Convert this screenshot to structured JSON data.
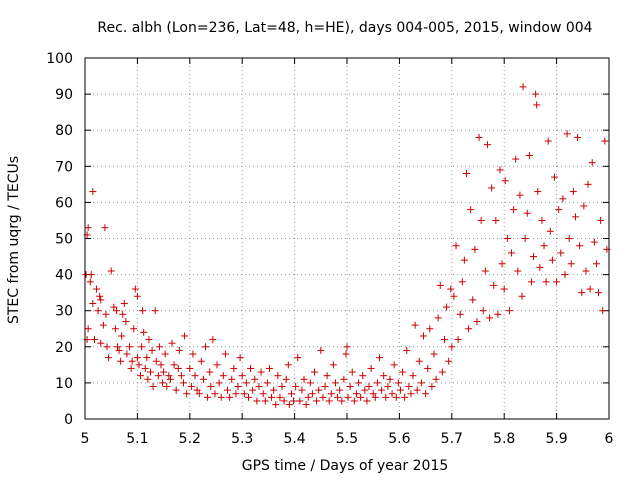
{
  "chart_data": {
    "type": "scatter",
    "title": "Rec. albh (Lon=236, Lat=48, h=HE), days 004-005, 2015, window 004",
    "xlabel": "GPS time / Days of year 2015",
    "ylabel": "STEC from uqrg / TECUs",
    "xlim": [
      5,
      6
    ],
    "ylim": [
      0,
      100
    ],
    "xticks": [
      "5",
      "5.1",
      "5.2",
      "5.3",
      "5.4",
      "5.5",
      "5.6",
      "5.7",
      "5.8",
      "5.9",
      "6"
    ],
    "yticks": [
      "0",
      "10",
      "20",
      "30",
      "40",
      "50",
      "60",
      "70",
      "80",
      "90",
      "100"
    ],
    "grid": true,
    "marker": "+",
    "color": "#cc0000",
    "series": [
      {
        "points": [
          [
            5.002,
            40
          ],
          [
            5.004,
            51
          ],
          [
            5.006,
            53
          ],
          [
            5.004,
            22
          ],
          [
            5.006,
            25
          ],
          [
            5.01,
            38
          ],
          [
            5.012,
            40
          ],
          [
            5.015,
            63
          ],
          [
            5.015,
            32
          ],
          [
            5.018,
            22
          ],
          [
            5.022,
            36
          ],
          [
            5.025,
            30
          ],
          [
            5.028,
            34
          ],
          [
            5.03,
            33
          ],
          [
            5.03,
            21
          ],
          [
            5.035,
            26
          ],
          [
            5.038,
            53
          ],
          [
            5.04,
            29
          ],
          [
            5.042,
            20
          ],
          [
            5.045,
            17
          ],
          [
            5.05,
            41
          ],
          [
            5.055,
            31
          ],
          [
            5.058,
            25
          ],
          [
            5.06,
            30
          ],
          [
            5.062,
            20
          ],
          [
            5.065,
            19
          ],
          [
            5.068,
            16
          ],
          [
            5.07,
            23
          ],
          [
            5.072,
            29
          ],
          [
            5.075,
            32
          ],
          [
            5.078,
            27
          ],
          [
            5.08,
            18
          ],
          [
            5.085,
            20
          ],
          [
            5.088,
            14
          ],
          [
            5.09,
            16
          ],
          [
            5.093,
            25
          ],
          [
            5.096,
            36
          ],
          [
            5.1,
            34
          ],
          [
            5.1,
            17
          ],
          [
            5.103,
            15
          ],
          [
            5.106,
            12
          ],
          [
            5.108,
            20
          ],
          [
            5.11,
            30
          ],
          [
            5.112,
            24
          ],
          [
            5.115,
            14
          ],
          [
            5.118,
            17
          ],
          [
            5.12,
            11
          ],
          [
            5.122,
            22
          ],
          [
            5.125,
            13
          ],
          [
            5.128,
            19
          ],
          [
            5.13,
            9
          ],
          [
            5.134,
            30
          ],
          [
            5.136,
            16
          ],
          [
            5.14,
            12
          ],
          [
            5.142,
            20
          ],
          [
            5.145,
            15
          ],
          [
            5.148,
            10
          ],
          [
            5.15,
            13
          ],
          [
            5.153,
            18
          ],
          [
            5.156,
            9
          ],
          [
            5.16,
            12
          ],
          [
            5.163,
            11
          ],
          [
            5.166,
            21
          ],
          [
            5.17,
            15
          ],
          [
            5.174,
            8
          ],
          [
            5.178,
            14
          ],
          [
            5.18,
            19
          ],
          [
            5.184,
            12
          ],
          [
            5.188,
            10
          ],
          [
            5.19,
            23
          ],
          [
            5.194,
            7
          ],
          [
            5.2,
            14
          ],
          [
            5.203,
            9
          ],
          [
            5.206,
            18
          ],
          [
            5.21,
            12
          ],
          [
            5.214,
            8
          ],
          [
            5.218,
            7
          ],
          [
            5.222,
            16
          ],
          [
            5.226,
            11
          ],
          [
            5.23,
            20
          ],
          [
            5.234,
            6
          ],
          [
            5.238,
            13
          ],
          [
            5.24,
            9
          ],
          [
            5.244,
            22
          ],
          [
            5.248,
            7
          ],
          [
            5.252,
            15
          ],
          [
            5.256,
            10
          ],
          [
            5.26,
            6
          ],
          [
            5.264,
            12
          ],
          [
            5.268,
            18
          ],
          [
            5.272,
            8
          ],
          [
            5.276,
            6
          ],
          [
            5.28,
            11
          ],
          [
            5.284,
            14
          ],
          [
            5.288,
            7
          ],
          [
            5.292,
            9
          ],
          [
            5.296,
            17
          ],
          [
            5.3,
            12
          ],
          [
            5.304,
            7
          ],
          [
            5.308,
            10
          ],
          [
            5.312,
            6
          ],
          [
            5.316,
            14
          ],
          [
            5.32,
            8
          ],
          [
            5.324,
            11
          ],
          [
            5.328,
            5
          ],
          [
            5.332,
            9
          ],
          [
            5.336,
            13
          ],
          [
            5.34,
            7
          ],
          [
            5.344,
            5
          ],
          [
            5.348,
            10
          ],
          [
            5.352,
            14
          ],
          [
            5.356,
            6
          ],
          [
            5.36,
            8
          ],
          [
            5.364,
            4
          ],
          [
            5.368,
            12
          ],
          [
            5.372,
            6
          ],
          [
            5.376,
            9
          ],
          [
            5.38,
            5
          ],
          [
            5.384,
            11
          ],
          [
            5.388,
            15
          ],
          [
            5.39,
            4
          ],
          [
            5.394,
            7
          ],
          [
            5.398,
            5
          ],
          [
            5.402,
            9
          ],
          [
            5.406,
            17
          ],
          [
            5.41,
            5
          ],
          [
            5.414,
            8
          ],
          [
            5.418,
            11
          ],
          [
            5.422,
            4
          ],
          [
            5.426,
            6
          ],
          [
            5.43,
            10
          ],
          [
            5.434,
            7
          ],
          [
            5.438,
            13
          ],
          [
            5.442,
            5
          ],
          [
            5.446,
            8
          ],
          [
            5.45,
            19
          ],
          [
            5.454,
            6
          ],
          [
            5.458,
            9
          ],
          [
            5.462,
            12
          ],
          [
            5.466,
            5
          ],
          [
            5.47,
            7
          ],
          [
            5.474,
            15
          ],
          [
            5.478,
            10
          ],
          [
            5.482,
            6
          ],
          [
            5.486,
            8
          ],
          [
            5.49,
            5
          ],
          [
            5.494,
            11
          ],
          [
            5.498,
            18
          ],
          [
            5.5,
            20
          ],
          [
            5.502,
            6
          ],
          [
            5.506,
            9
          ],
          [
            5.51,
            13
          ],
          [
            5.514,
            5
          ],
          [
            5.518,
            7
          ],
          [
            5.522,
            10
          ],
          [
            5.526,
            6
          ],
          [
            5.53,
            12
          ],
          [
            5.534,
            8
          ],
          [
            5.538,
            5
          ],
          [
            5.542,
            9
          ],
          [
            5.546,
            14
          ],
          [
            5.55,
            7
          ],
          [
            5.554,
            6
          ],
          [
            5.558,
            10
          ],
          [
            5.562,
            17
          ],
          [
            5.566,
            8
          ],
          [
            5.57,
            12
          ],
          [
            5.574,
            6
          ],
          [
            5.578,
            9
          ],
          [
            5.582,
            11
          ],
          [
            5.586,
            7
          ],
          [
            5.59,
            15
          ],
          [
            5.594,
            6
          ],
          [
            5.598,
            10
          ],
          [
            5.602,
            8
          ],
          [
            5.606,
            13
          ],
          [
            5.61,
            6
          ],
          [
            5.614,
            19
          ],
          [
            5.618,
            9
          ],
          [
            5.622,
            7
          ],
          [
            5.626,
            12
          ],
          [
            5.63,
            26
          ],
          [
            5.634,
            8
          ],
          [
            5.638,
            16
          ],
          [
            5.642,
            10
          ],
          [
            5.646,
            23
          ],
          [
            5.65,
            7
          ],
          [
            5.654,
            14
          ],
          [
            5.658,
            25
          ],
          [
            5.662,
            9
          ],
          [
            5.666,
            18
          ],
          [
            5.67,
            11
          ],
          [
            5.674,
            28
          ],
          [
            5.678,
            37
          ],
          [
            5.682,
            13
          ],
          [
            5.686,
            22
          ],
          [
            5.69,
            31
          ],
          [
            5.694,
            16
          ],
          [
            5.698,
            36
          ],
          [
            5.7,
            20
          ],
          [
            5.704,
            34
          ],
          [
            5.708,
            48
          ],
          [
            5.712,
            22
          ],
          [
            5.716,
            29
          ],
          [
            5.72,
            38
          ],
          [
            5.724,
            44
          ],
          [
            5.728,
            68
          ],
          [
            5.732,
            25
          ],
          [
            5.736,
            58
          ],
          [
            5.74,
            33
          ],
          [
            5.744,
            47
          ],
          [
            5.748,
            27
          ],
          [
            5.752,
            78
          ],
          [
            5.756,
            55
          ],
          [
            5.76,
            30
          ],
          [
            5.764,
            41
          ],
          [
            5.768,
            76
          ],
          [
            5.772,
            28
          ],
          [
            5.776,
            64
          ],
          [
            5.78,
            37
          ],
          [
            5.784,
            55
          ],
          [
            5.788,
            29
          ],
          [
            5.792,
            69
          ],
          [
            5.796,
            43
          ],
          [
            5.8,
            36
          ],
          [
            5.802,
            66
          ],
          [
            5.806,
            50
          ],
          [
            5.81,
            30
          ],
          [
            5.814,
            46
          ],
          [
            5.818,
            58
          ],
          [
            5.822,
            72
          ],
          [
            5.826,
            41
          ],
          [
            5.83,
            62
          ],
          [
            5.834,
            34
          ],
          [
            5.836,
            92
          ],
          [
            5.84,
            50
          ],
          [
            5.844,
            57
          ],
          [
            5.848,
            73
          ],
          [
            5.852,
            38
          ],
          [
            5.856,
            45
          ],
          [
            5.86,
            90
          ],
          [
            5.862,
            87
          ],
          [
            5.864,
            63
          ],
          [
            5.868,
            42
          ],
          [
            5.872,
            55
          ],
          [
            5.876,
            48
          ],
          [
            5.88,
            38
          ],
          [
            5.884,
            77
          ],
          [
            5.888,
            52
          ],
          [
            5.892,
            44
          ],
          [
            5.896,
            67
          ],
          [
            5.9,
            38
          ],
          [
            5.904,
            58
          ],
          [
            5.908,
            46
          ],
          [
            5.912,
            61
          ],
          [
            5.916,
            40
          ],
          [
            5.92,
            79
          ],
          [
            5.924,
            50
          ],
          [
            5.928,
            43
          ],
          [
            5.932,
            63
          ],
          [
            5.936,
            56
          ],
          [
            5.94,
            78
          ],
          [
            5.944,
            48
          ],
          [
            5.948,
            35
          ],
          [
            5.952,
            59
          ],
          [
            5.956,
            41
          ],
          [
            5.96,
            65
          ],
          [
            5.964,
            36
          ],
          [
            5.968,
            71
          ],
          [
            5.972,
            49
          ],
          [
            5.976,
            43
          ],
          [
            5.98,
            35
          ],
          [
            5.984,
            55
          ],
          [
            5.988,
            30
          ],
          [
            5.992,
            77
          ],
          [
            5.996,
            47
          ]
        ]
      }
    ]
  }
}
